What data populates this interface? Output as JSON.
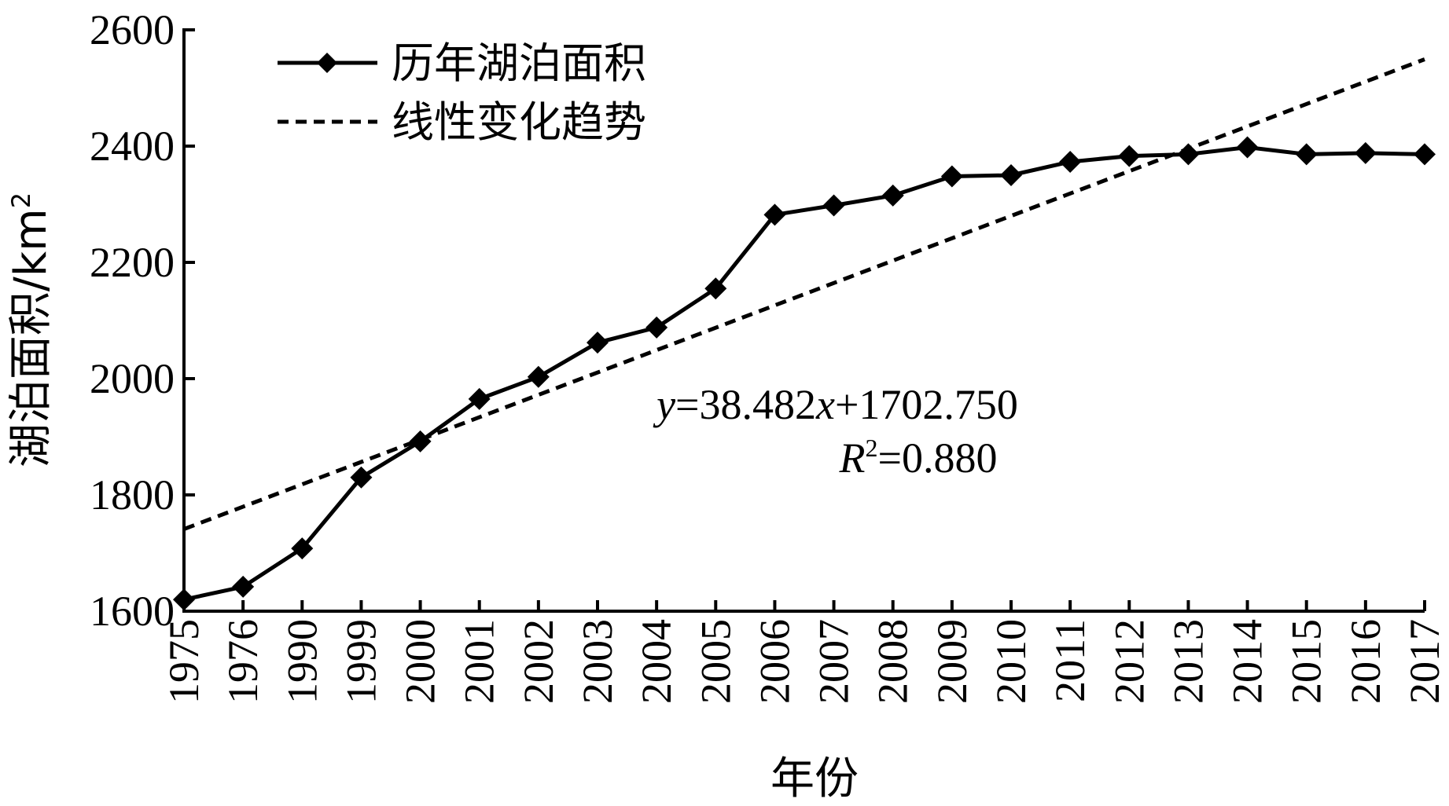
{
  "chart_data": {
    "type": "line",
    "title": "",
    "xlabel": "年份",
    "ylabel": "湖泊面积/km",
    "ylabel_superscript": "2",
    "categories": [
      "1975",
      "1976",
      "1990",
      "1999",
      "2000",
      "2001",
      "2002",
      "2003",
      "2004",
      "2005",
      "2006",
      "2007",
      "2008",
      "2009",
      "2010",
      "2011",
      "2012",
      "2013",
      "2014",
      "2015",
      "2016",
      "2017"
    ],
    "ylim": [
      1600,
      2600
    ],
    "yticks": [
      1600,
      1800,
      2000,
      2200,
      2400,
      2600
    ],
    "grid": false,
    "legend_position": "top-left",
    "series": [
      {
        "name": "历年湖泊面积",
        "style": "solid-diamond",
        "values": [
          1620,
          1642,
          1708,
          1830,
          1892,
          1965,
          2003,
          2062,
          2088,
          2155,
          2282,
          2298,
          2315,
          2348,
          2350,
          2373,
          2383,
          2386,
          2398,
          2386,
          2388,
          2386
        ]
      },
      {
        "name": "线性变化趋势",
        "style": "dashed",
        "slope": 38.482,
        "intercept": 1702.75
      }
    ],
    "annotations": {
      "eq_y": "y",
      "eq_rest1": "=38.482",
      "eq_x": "x",
      "eq_rest2": "+1702.750",
      "r2_R": "R",
      "r2_sup": "2",
      "r2_rest": "=0.880"
    }
  },
  "colors": {
    "line": "#000000",
    "background": "#ffffff"
  }
}
